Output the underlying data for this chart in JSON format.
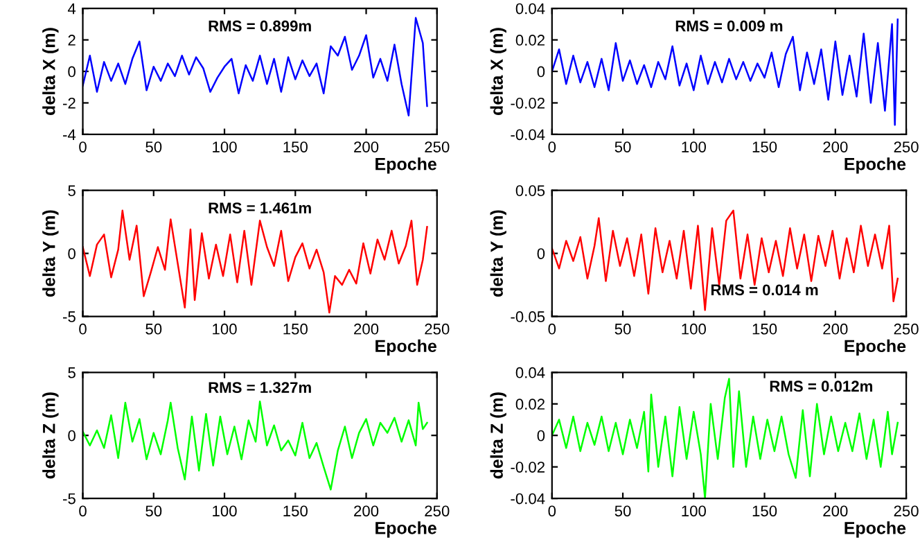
{
  "chart_data": [
    {
      "type": "line",
      "xlabel": "Epoche",
      "ylabel": "delta X (m)",
      "annotations": [
        "RMS = 0.899m"
      ],
      "xlim": [
        0,
        250
      ],
      "xticks": [
        0,
        50,
        100,
        150,
        200,
        250
      ],
      "ylim": [
        -4,
        4
      ],
      "yticks": [
        -4,
        -2,
        0,
        2,
        4
      ],
      "series": [
        {
          "color": "#0000ff",
          "x": [
            0,
            5,
            10,
            15,
            20,
            25,
            30,
            35,
            40,
            45,
            50,
            55,
            60,
            65,
            70,
            75,
            80,
            85,
            90,
            95,
            100,
            105,
            110,
            115,
            120,
            125,
            130,
            135,
            140,
            145,
            150,
            155,
            160,
            165,
            170,
            175,
            180,
            185,
            190,
            195,
            200,
            205,
            210,
            215,
            220,
            225,
            230,
            235,
            240,
            243
          ],
          "values": [
            -0.9,
            1.0,
            -1.3,
            0.6,
            -0.6,
            0.5,
            -0.8,
            0.8,
            1.9,
            -1.2,
            0.3,
            -0.6,
            0.5,
            -0.3,
            1.0,
            -0.2,
            0.9,
            0.2,
            -1.3,
            -0.4,
            0.3,
            0.8,
            -1.4,
            0.4,
            -0.6,
            1.0,
            -0.8,
            0.8,
            -1.3,
            0.9,
            -0.5,
            0.7,
            -0.3,
            0.5,
            -1.4,
            1.6,
            1.0,
            2.2,
            0.1,
            1.0,
            2.3,
            -0.4,
            0.8,
            -0.6,
            1.7,
            -0.8,
            -2.8,
            3.4,
            1.8,
            -2.2
          ]
        }
      ]
    },
    {
      "type": "line",
      "xlabel": "Epoche",
      "ylabel": "delta X (m)",
      "annotations": [
        "RMS = 0.009 m"
      ],
      "xlim": [
        0,
        250
      ],
      "xticks": [
        0,
        50,
        100,
        150,
        200,
        250
      ],
      "ylim": [
        -0.04,
        0.04
      ],
      "yticks": [
        -0.04,
        -0.02,
        0,
        0.02,
        0.04
      ],
      "series": [
        {
          "color": "#0000ff",
          "x": [
            0,
            5,
            10,
            15,
            20,
            25,
            30,
            35,
            40,
            45,
            50,
            55,
            60,
            65,
            70,
            75,
            80,
            85,
            90,
            95,
            100,
            105,
            110,
            115,
            120,
            125,
            130,
            135,
            140,
            145,
            150,
            155,
            160,
            165,
            170,
            175,
            180,
            185,
            190,
            195,
            200,
            205,
            210,
            215,
            220,
            225,
            230,
            235,
            240,
            242,
            244
          ],
          "values": [
            0.0,
            0.014,
            -0.008,
            0.01,
            -0.007,
            0.006,
            -0.01,
            0.008,
            -0.012,
            0.018,
            -0.006,
            0.007,
            -0.008,
            0.004,
            -0.01,
            0.006,
            -0.005,
            0.016,
            -0.009,
            0.005,
            -0.012,
            0.01,
            -0.008,
            0.006,
            -0.007,
            0.008,
            -0.005,
            0.006,
            -0.006,
            0.005,
            -0.004,
            0.012,
            -0.01,
            0.011,
            0.022,
            -0.012,
            0.012,
            -0.008,
            0.014,
            -0.018,
            0.019,
            -0.015,
            0.01,
            -0.016,
            0.024,
            -0.02,
            0.018,
            -0.025,
            0.03,
            -0.034,
            0.033
          ]
        }
      ]
    },
    {
      "type": "line",
      "xlabel": "Epoche",
      "ylabel": "delta Y (m)",
      "annotations": [
        "RMS = 1.461m"
      ],
      "xlim": [
        0,
        250
      ],
      "xticks": [
        0,
        50,
        100,
        150,
        200,
        250
      ],
      "ylim": [
        -5,
        5
      ],
      "yticks": [
        -5,
        0,
        5
      ],
      "series": [
        {
          "color": "#ff0000",
          "x": [
            0,
            5,
            10,
            15,
            20,
            25,
            28,
            33,
            38,
            43,
            48,
            53,
            58,
            62,
            67,
            72,
            76,
            79,
            84,
            89,
            94,
            99,
            104,
            109,
            114,
            119,
            125,
            130,
            135,
            140,
            145,
            150,
            155,
            160,
            165,
            170,
            174,
            178,
            183,
            188,
            193,
            198,
            203,
            208,
            213,
            218,
            223,
            228,
            232,
            236,
            240,
            243
          ],
          "values": [
            0.5,
            -1.8,
            0.7,
            1.5,
            -1.9,
            0.3,
            3.4,
            -0.5,
            2.2,
            -3.4,
            -1.5,
            0.5,
            -1.3,
            2.7,
            -0.8,
            -4.3,
            1.9,
            -3.7,
            1.6,
            -2.0,
            0.7,
            -1.8,
            1.5,
            -2.3,
            1.8,
            -2.5,
            2.6,
            0.5,
            -1.0,
            1.8,
            -2.2,
            -0.3,
            0.8,
            -1.2,
            0.3,
            -1.5,
            -4.7,
            -1.8,
            -2.5,
            -1.3,
            -2.4,
            0.8,
            -1.6,
            1.1,
            -0.5,
            1.8,
            -0.8,
            0.6,
            2.6,
            -2.5,
            -0.5,
            2.1
          ]
        }
      ]
    },
    {
      "type": "line",
      "xlabel": "Epoche",
      "ylabel": "delta Y (m)",
      "annotations": [
        "RMS = 0.014 m"
      ],
      "xlim": [
        0,
        250
      ],
      "xticks": [
        0,
        50,
        100,
        150,
        200,
        250
      ],
      "ylim": [
        -0.05,
        0.05
      ],
      "yticks": [
        -0.05,
        0,
        0.05
      ],
      "series": [
        {
          "color": "#ff0000",
          "x": [
            0,
            5,
            10,
            15,
            20,
            25,
            30,
            33,
            38,
            43,
            48,
            53,
            58,
            63,
            68,
            73,
            78,
            83,
            88,
            93,
            98,
            103,
            108,
            113,
            118,
            123,
            128,
            133,
            138,
            143,
            148,
            153,
            158,
            163,
            168,
            173,
            178,
            183,
            188,
            193,
            198,
            203,
            208,
            213,
            218,
            223,
            228,
            233,
            238,
            241,
            244
          ],
          "values": [
            0.004,
            -0.012,
            0.01,
            -0.006,
            0.013,
            -0.02,
            0.006,
            0.028,
            -0.022,
            0.018,
            -0.01,
            0.012,
            -0.018,
            0.015,
            -0.032,
            0.02,
            -0.015,
            0.01,
            -0.02,
            0.018,
            -0.028,
            0.022,
            -0.045,
            0.02,
            -0.025,
            0.026,
            0.034,
            -0.02,
            0.015,
            -0.025,
            0.012,
            -0.015,
            0.01,
            -0.018,
            0.02,
            -0.012,
            0.015,
            -0.022,
            0.014,
            -0.01,
            0.018,
            -0.02,
            0.012,
            -0.015,
            0.022,
            -0.01,
            0.015,
            -0.012,
            0.022,
            -0.038,
            -0.02
          ]
        }
      ]
    },
    {
      "type": "line",
      "xlabel": "Epoche",
      "ylabel": "delta Z (m)",
      "annotations": [
        "RMS = 1.327m"
      ],
      "xlim": [
        0,
        250
      ],
      "xticks": [
        0,
        50,
        100,
        150,
        200,
        250
      ],
      "ylim": [
        -5,
        5
      ],
      "yticks": [
        -5,
        0,
        5
      ],
      "series": [
        {
          "color": "#00ff00",
          "x": [
            0,
            5,
            10,
            15,
            20,
            25,
            30,
            35,
            40,
            45,
            50,
            55,
            60,
            62,
            67,
            72,
            77,
            82,
            87,
            92,
            97,
            102,
            107,
            112,
            117,
            122,
            125,
            130,
            135,
            140,
            145,
            150,
            155,
            160,
            165,
            170,
            175,
            180,
            185,
            190,
            195,
            200,
            205,
            210,
            215,
            220,
            225,
            230,
            235,
            237,
            240,
            243
          ],
          "values": [
            0.3,
            -0.8,
            0.4,
            -1.0,
            1.6,
            -1.8,
            2.6,
            -0.5,
            1.3,
            -1.9,
            0.2,
            -1.5,
            1.2,
            2.6,
            -1.0,
            -3.5,
            1.5,
            -2.8,
            1.7,
            -2.4,
            1.5,
            -1.5,
            0.7,
            -1.9,
            1.2,
            -0.5,
            2.7,
            -0.8,
            0.8,
            -1.2,
            -0.4,
            -1.6,
            1.0,
            -1.8,
            -0.6,
            -2.5,
            -4.3,
            -1.2,
            0.7,
            -1.8,
            0.2,
            1.3,
            -0.8,
            1.0,
            0.2,
            1.4,
            -0.5,
            1.2,
            -0.8,
            2.6,
            0.5,
            1.0
          ]
        }
      ]
    },
    {
      "type": "line",
      "xlabel": "Epoche",
      "ylabel": "delta Z (m)",
      "annotations": [
        "RMS = 0.012m"
      ],
      "xlim": [
        0,
        250
      ],
      "xticks": [
        0,
        50,
        100,
        150,
        200,
        250
      ],
      "ylim": [
        -0.04,
        0.04
      ],
      "yticks": [
        -0.04,
        -0.02,
        0,
        0.02,
        0.04
      ],
      "series": [
        {
          "color": "#00ff00",
          "x": [
            0,
            5,
            10,
            15,
            20,
            25,
            30,
            35,
            40,
            45,
            50,
            55,
            60,
            65,
            68,
            70,
            75,
            80,
            85,
            90,
            95,
            100,
            105,
            108,
            112,
            117,
            122,
            125,
            128,
            132,
            137,
            142,
            147,
            152,
            157,
            162,
            167,
            172,
            177,
            182,
            187,
            192,
            197,
            202,
            207,
            212,
            217,
            222,
            227,
            232,
            237,
            240,
            244
          ],
          "values": [
            0.0,
            0.01,
            -0.008,
            0.012,
            -0.01,
            0.008,
            -0.006,
            0.012,
            -0.01,
            0.008,
            -0.012,
            0.01,
            -0.008,
            0.015,
            -0.023,
            0.026,
            -0.02,
            0.012,
            -0.026,
            0.018,
            -0.015,
            0.015,
            -0.012,
            -0.04,
            0.02,
            -0.015,
            0.024,
            0.036,
            -0.02,
            0.028,
            -0.02,
            0.012,
            -0.015,
            0.01,
            -0.01,
            0.012,
            -0.012,
            -0.027,
            0.016,
            -0.026,
            0.02,
            -0.012,
            0.012,
            -0.01,
            0.008,
            -0.01,
            0.014,
            -0.015,
            0.01,
            -0.02,
            0.015,
            -0.012,
            0.008
          ]
        }
      ]
    }
  ]
}
